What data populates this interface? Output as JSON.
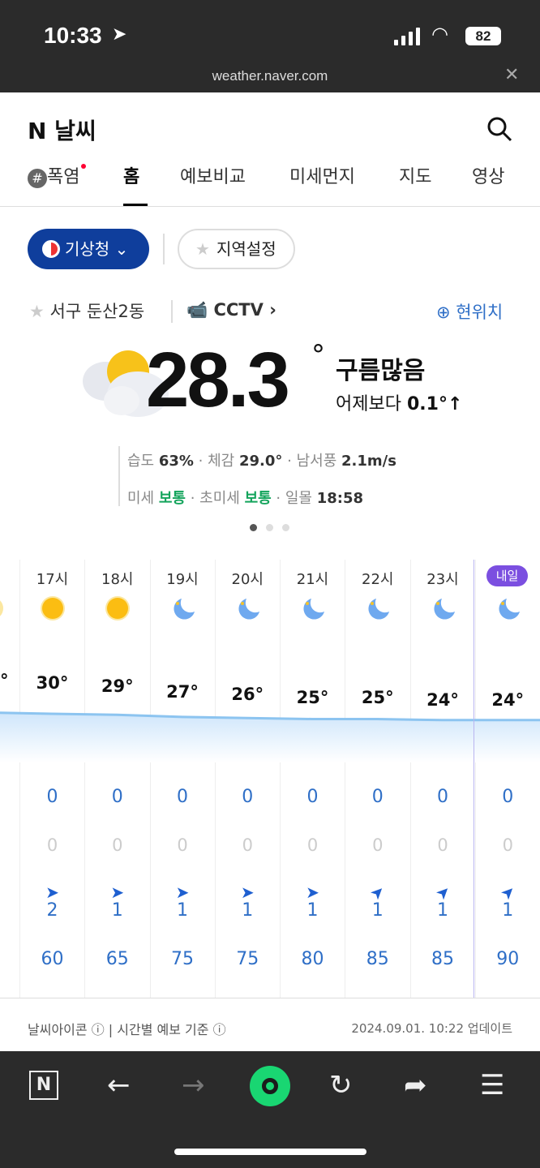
{
  "status_bar": {
    "time": "10:33",
    "battery": "82",
    "url": "weather.naver.com"
  },
  "header": {
    "logo": "N 날씨",
    "tabs": [
      {
        "label": "폭염"
      },
      {
        "label": "홈"
      },
      {
        "label": "예보비교"
      },
      {
        "label": "미세먼지"
      },
      {
        "label": "지도"
      },
      {
        "label": "영상"
      }
    ]
  },
  "source": {
    "provider": "기상청",
    "region_setting": "지역설정"
  },
  "location": {
    "name": "서구 둔산2동",
    "cctv": "CCTV",
    "current_location": "현위치"
  },
  "current": {
    "temp": "28.3",
    "degree": "°",
    "condition": "구름많음",
    "compare_label": "어제보다",
    "compare_value": "0.1°↑",
    "humidity_label": "습도",
    "humidity": "63%",
    "feels_label": "체감",
    "feels": "29.0°",
    "wind_label": "남서풍",
    "wind": "2.1m/s",
    "dust_label": "미세",
    "dust": "보통",
    "fine_dust_label": "초미세",
    "fine_dust": "보통",
    "sunset_label": "일몰",
    "sunset": "18:58"
  },
  "colors": {
    "brand": "#0f3e9c",
    "accent_blue": "#2f6fc7",
    "good": "#14a45c",
    "tomorrow": "#7b4fe0"
  },
  "hourly": {
    "tomorrow_badge": "내일",
    "items": [
      {
        "hour": "",
        "icon": "sun-icon",
        "temp": "°",
        "rain": "",
        "prob": "",
        "wind_dir": "",
        "wind": "",
        "humidity": ""
      },
      {
        "hour": "17시",
        "icon": "sun-icon",
        "temp": "30°",
        "rain": "0",
        "prob": "0",
        "wind_dir": "east",
        "wind": "2",
        "humidity": "60"
      },
      {
        "hour": "18시",
        "icon": "sun-icon",
        "temp": "29°",
        "rain": "0",
        "prob": "0",
        "wind_dir": "east",
        "wind": "1",
        "humidity": "65"
      },
      {
        "hour": "19시",
        "icon": "moon-icon",
        "temp": "27°",
        "rain": "0",
        "prob": "0",
        "wind_dir": "east",
        "wind": "1",
        "humidity": "75"
      },
      {
        "hour": "20시",
        "icon": "moon-icon",
        "temp": "26°",
        "rain": "0",
        "prob": "0",
        "wind_dir": "east",
        "wind": "1",
        "humidity": "75"
      },
      {
        "hour": "21시",
        "icon": "moon-icon",
        "temp": "25°",
        "rain": "0",
        "prob": "0",
        "wind_dir": "east",
        "wind": "1",
        "humidity": "80"
      },
      {
        "hour": "22시",
        "icon": "moon-icon",
        "temp": "25°",
        "rain": "0",
        "prob": "0",
        "wind_dir": "northeast",
        "wind": "1",
        "humidity": "85"
      },
      {
        "hour": "23시",
        "icon": "moon-icon",
        "temp": "24°",
        "rain": "0",
        "prob": "0",
        "wind_dir": "northeast",
        "wind": "1",
        "humidity": "85"
      },
      {
        "hour": "",
        "icon": "moon-icon",
        "temp": "24°",
        "rain": "0",
        "prob": "0",
        "wind_dir": "northeast",
        "wind": "1",
        "humidity": "90"
      }
    ]
  },
  "footer": {
    "icon_info": "날씨아이콘",
    "hourly_basis": "시간별 예보 기준",
    "updated": "2024.09.01. 10:22 업데이트"
  }
}
